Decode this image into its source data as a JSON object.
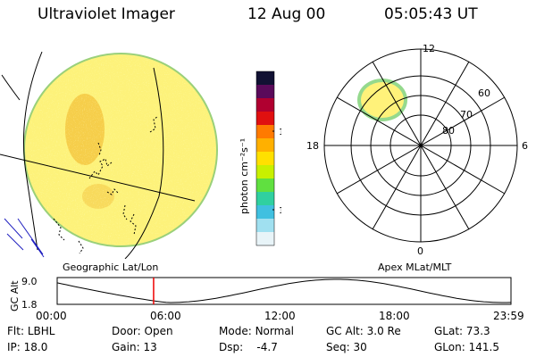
{
  "header": {
    "instrument": "Ultraviolet Imager",
    "date": "12 Aug 00",
    "time": "05:05:43 UT"
  },
  "colorbar": {
    "unit_label": "photon cm⁻²s⁻¹",
    "tick_labels": [
      "100",
      "10"
    ],
    "colors": [
      "#111133",
      "#5a0a5a",
      "#b00030",
      "#e01010",
      "#ff7a00",
      "#ffb000",
      "#ffe000",
      "#c8f000",
      "#60e040",
      "#30d0a0",
      "#40c0e0",
      "#a0e0f0",
      "#e8f4f8"
    ]
  },
  "geo_panel": {
    "label": "Geographic Lat/Lon"
  },
  "polar_panel": {
    "label": "Apex MLat/MLT",
    "mlt_labels": {
      "top": "12",
      "bottom": "0",
      "left": "18",
      "right": "6"
    },
    "mlat_labels": [
      "60",
      "70",
      "80"
    ]
  },
  "altitude_plot": {
    "axis_title": "GC Alt",
    "y_ticks": [
      "9.0",
      "1.8"
    ],
    "x_ticks": [
      "00:00",
      "06:00",
      "12:00",
      "18:00",
      "23:59"
    ],
    "current_time_marker_hours": 5.1
  },
  "info": {
    "flt": {
      "label": "Flt:",
      "value": "LBHL"
    },
    "ip": {
      "label": "IP:",
      "value": "18.0"
    },
    "door": {
      "label": "Door:",
      "value": "Open"
    },
    "gain": {
      "label": "Gain:",
      "value": "13"
    },
    "mode": {
      "label": "Mode:",
      "value": "Normal"
    },
    "dsp": {
      "label": "Dsp:",
      "value": "-4.7"
    },
    "gcalt": {
      "label": "GC Alt:",
      "value": "3.0 Re"
    },
    "seq": {
      "label": "Seq:",
      "value": "30"
    },
    "glat": {
      "label": "GLat:",
      "value": "73.3"
    },
    "glon": {
      "label": "GLon:",
      "value": "141.5"
    }
  },
  "colors": {
    "disk_base": "#fdf27a",
    "disk_patch": "#f5c842",
    "oval_fill": "#fff27a",
    "oval_edge": "#7ad070",
    "marker": "#ee0000",
    "coast_blue": "#2020c0"
  }
}
